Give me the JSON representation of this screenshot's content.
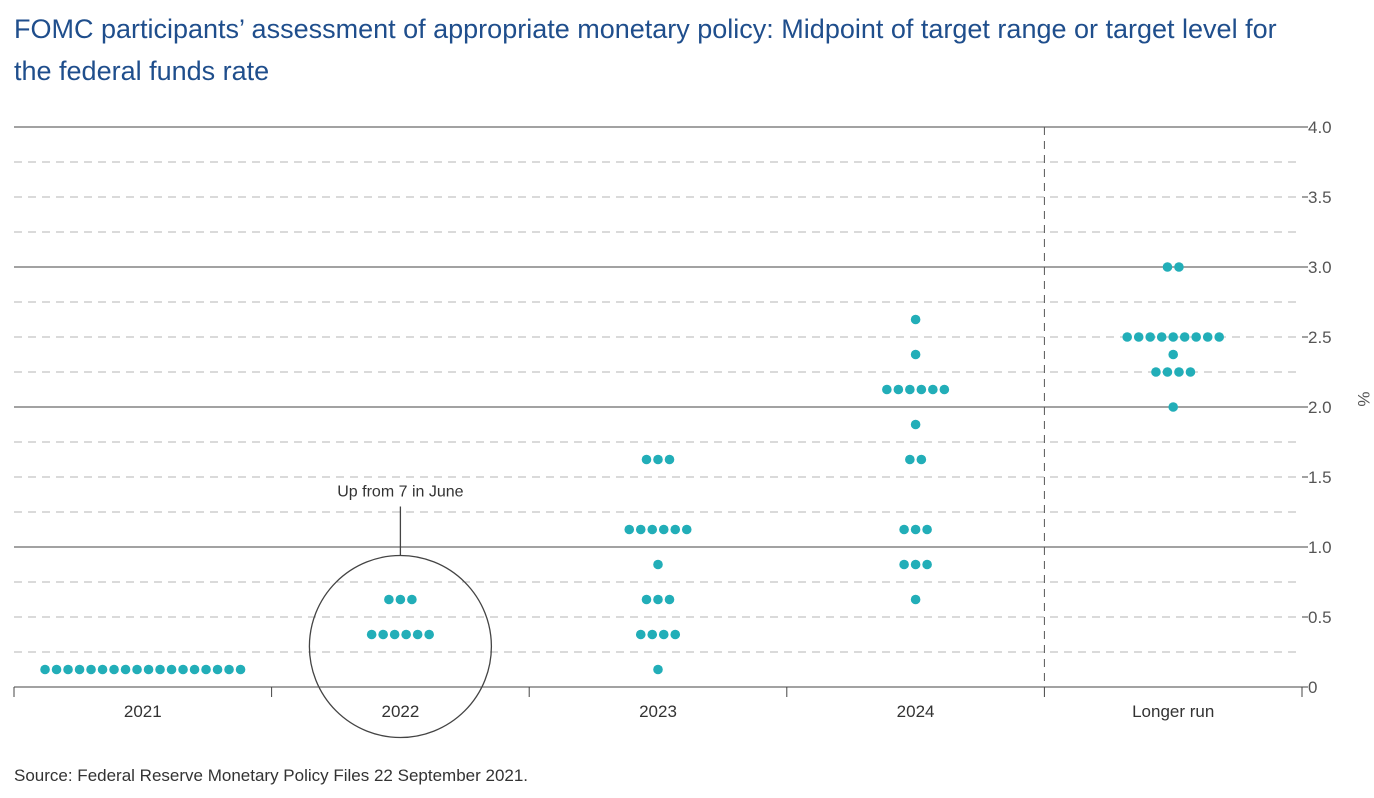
{
  "header": {
    "title": "FOMC participants’ assessment of appropriate monetary policy: Midpoint of target range or target level for the federal funds rate"
  },
  "footer": {
    "source": "Source: Federal Reserve Monetary Policy Files 22 September 2021."
  },
  "chart_data": {
    "type": "scatter",
    "subtype": "dot-plot",
    "title": "FOMC participants’ assessment of appropriate monetary policy: Midpoint of target range or target level for the federal funds rate",
    "categories": [
      "2021",
      "2022",
      "2023",
      "2024",
      "Longer run"
    ],
    "ylabel": "%",
    "ylim": [
      0,
      4.0
    ],
    "y_ticks": [
      "0",
      "0.5",
      "1.0",
      "1.5",
      "2.0",
      "2.5",
      "3.0",
      "3.5",
      "4.0"
    ],
    "y_tick_values": [
      0,
      0.5,
      1.0,
      1.5,
      2.0,
      2.5,
      3.0,
      3.5,
      4.0
    ],
    "y_axis_side": "right",
    "grid": "solid at whole numbers, dashed at every 0.25",
    "dot_color": "#22aeb8",
    "separator": "dashed vertical line before Longer run",
    "dots": [
      {
        "category": "2021",
        "y": 0.125,
        "count": 18
      },
      {
        "category": "2022",
        "y": 0.375,
        "count": 6
      },
      {
        "category": "2022",
        "y": 0.625,
        "count": 3
      },
      {
        "category": "2023",
        "y": 0.125,
        "count": 1
      },
      {
        "category": "2023",
        "y": 0.375,
        "count": 4
      },
      {
        "category": "2023",
        "y": 0.625,
        "count": 3
      },
      {
        "category": "2023",
        "y": 0.875,
        "count": 1
      },
      {
        "category": "2023",
        "y": 1.125,
        "count": 6
      },
      {
        "category": "2023",
        "y": 1.625,
        "count": 3
      },
      {
        "category": "2024",
        "y": 0.625,
        "count": 1
      },
      {
        "category": "2024",
        "y": 0.875,
        "count": 3
      },
      {
        "category": "2024",
        "y": 1.125,
        "count": 3
      },
      {
        "category": "2024",
        "y": 1.625,
        "count": 2
      },
      {
        "category": "2024",
        "y": 1.875,
        "count": 1
      },
      {
        "category": "2024",
        "y": 2.125,
        "count": 6
      },
      {
        "category": "2024",
        "y": 2.375,
        "count": 1
      },
      {
        "category": "2024",
        "y": 2.625,
        "count": 1
      },
      {
        "category": "Longer run",
        "y": 2.0,
        "count": 1
      },
      {
        "category": "Longer run",
        "y": 2.25,
        "count": 4
      },
      {
        "category": "Longer run",
        "y": 2.375,
        "count": 1
      },
      {
        "category": "Longer run",
        "y": 2.5,
        "count": 9
      },
      {
        "category": "Longer run",
        "y": 3.0,
        "count": 2
      }
    ],
    "annotation": {
      "text": "Up from 7 in June",
      "category": "2022",
      "shape": "circle"
    }
  }
}
